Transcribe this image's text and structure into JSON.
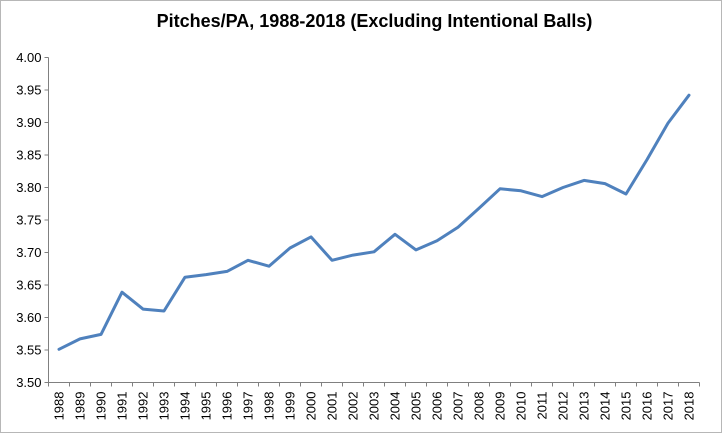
{
  "window": {
    "background_color": "#ffffff",
    "border_color": "#b7b7b7"
  },
  "chart_data": {
    "type": "line",
    "title": "Pitches/PA, 1988-2018 (Excluding Intentional Balls)",
    "categories": [
      "1988",
      "1989",
      "1990",
      "1991",
      "1992",
      "1993",
      "1994",
      "1995",
      "1996",
      "1997",
      "1998",
      "1999",
      "2000",
      "2001",
      "2002",
      "2003",
      "2004",
      "2005",
      "2006",
      "2007",
      "2008",
      "2009",
      "2010",
      "2011",
      "2012",
      "2013",
      "2014",
      "2015",
      "2016",
      "2017",
      "2018"
    ],
    "series": [
      {
        "values": [
          3.551,
          3.567,
          3.574,
          3.639,
          3.613,
          3.61,
          3.662,
          3.666,
          3.671,
          3.688,
          3.679,
          3.707,
          3.724,
          3.688,
          3.696,
          3.701,
          3.728,
          3.704,
          3.718,
          3.739,
          3.768,
          3.798,
          3.795,
          3.786,
          3.8,
          3.811,
          3.806,
          3.79,
          3.843,
          3.899,
          3.942
        ],
        "color": "#4F81BD",
        "stroke_width": 3
      }
    ],
    "xlabel": "",
    "ylabel": "",
    "ylim": [
      3.5,
      4.0
    ],
    "ytick_step": 0.05,
    "y_tick_labels": [
      "4.00",
      "3.95",
      "3.90",
      "3.85",
      "3.80",
      "3.75",
      "3.70",
      "3.65",
      "3.60",
      "3.55",
      "3.50"
    ],
    "x_label_rotation": -90,
    "grid": false,
    "legend": "none",
    "axis_color": "#808080",
    "tick_color": "#808080",
    "label_color": "#000000",
    "axis_font_size": 13
  }
}
